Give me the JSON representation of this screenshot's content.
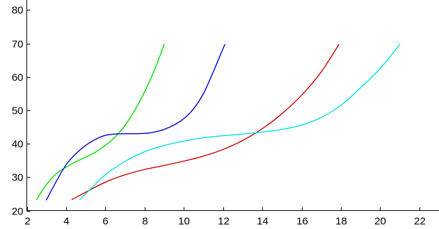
{
  "chart_data": {
    "type": "line",
    "title": "",
    "xlabel": "",
    "ylabel": "",
    "xlim": [
      2,
      23
    ],
    "ylim": [
      20,
      83
    ],
    "x_ticks": [
      2,
      4,
      6,
      8,
      10,
      12,
      14,
      16,
      18,
      20,
      22
    ],
    "y_ticks": [
      20,
      30,
      40,
      50,
      60,
      70,
      80
    ],
    "grid": false,
    "legend": "none",
    "series": [
      {
        "color": "#00dd00",
        "x": [
          2.5,
          3.0,
          3.5,
          4.0,
          4.5,
          5.0,
          5.5,
          6.0,
          6.5,
          7.0,
          7.5,
          8.0,
          8.5,
          9.0
        ],
        "y": [
          23.3,
          27.8,
          31.0,
          33.0,
          34.6,
          36.0,
          37.5,
          39.5,
          42.0,
          45.5,
          50.0,
          55.5,
          62.0,
          69.7
        ]
      },
      {
        "color": "#0000cc",
        "x": [
          3.0,
          3.5,
          4.0,
          4.5,
          5.0,
          5.5,
          6.0,
          6.5,
          7.0,
          7.5,
          8.0,
          8.5,
          9.0,
          9.5,
          10.0,
          10.5,
          11.0,
          11.5,
          12.0,
          12.1
        ],
        "y": [
          23.2,
          28.7,
          33.7,
          37.0,
          39.5,
          41.3,
          42.5,
          42.9,
          43.0,
          43.0,
          43.1,
          43.5,
          44.3,
          45.6,
          47.5,
          50.5,
          55.0,
          61.5,
          68.5,
          69.7
        ]
      },
      {
        "color": "#cc0000",
        "x": [
          4.3,
          5.0,
          6.0,
          7.0,
          8.0,
          9.0,
          10.0,
          11.0,
          12.0,
          13.0,
          14.0,
          15.0,
          16.0,
          17.0,
          17.9
        ],
        "y": [
          23.3,
          25.5,
          28.5,
          30.7,
          32.3,
          33.5,
          34.8,
          36.3,
          38.3,
          41.0,
          44.5,
          49.0,
          54.5,
          61.5,
          69.7
        ]
      },
      {
        "color": "#00e0e0",
        "x": [
          4.7,
          5.0,
          6.0,
          7.0,
          8.0,
          9.0,
          10.0,
          11.0,
          12.0,
          13.0,
          14.0,
          15.0,
          16.0,
          17.0,
          18.0,
          19.0,
          20.0,
          21.0
        ],
        "y": [
          23.3,
          25.0,
          30.7,
          34.7,
          37.6,
          39.5,
          40.8,
          41.8,
          42.4,
          42.9,
          43.5,
          44.3,
          45.6,
          47.9,
          51.5,
          56.7,
          62.5,
          69.7
        ]
      }
    ]
  }
}
